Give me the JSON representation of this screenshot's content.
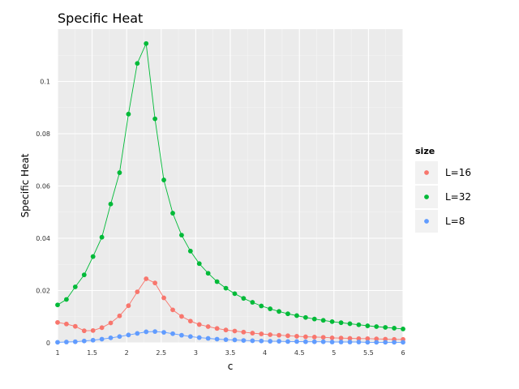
{
  "chart_data": {
    "type": "line",
    "title": "Specific Heat",
    "xlabel": "c",
    "ylabel": "Specific Heat",
    "xlim": [
      1,
      6
    ],
    "ylim": [
      0,
      0.12
    ],
    "x_ticks": [
      "1",
      "1.5",
      "2",
      "2.5",
      "3",
      "3.5",
      "4",
      "4.5",
      "5",
      "5.5",
      "6"
    ],
    "y_ticks": [
      "0",
      "0.02",
      "0.04",
      "0.06",
      "0.08",
      "0.1"
    ],
    "grid": true,
    "legend": {
      "title": "size",
      "position": "right"
    },
    "x": [
      1.0,
      1.128,
      1.256,
      1.385,
      1.513,
      1.641,
      1.769,
      1.897,
      2.026,
      2.154,
      2.282,
      2.41,
      2.538,
      2.667,
      2.795,
      2.923,
      3.051,
      3.179,
      3.308,
      3.436,
      3.564,
      3.692,
      3.821,
      3.949,
      4.077,
      4.205,
      4.333,
      4.462,
      4.59,
      4.718,
      4.846,
      4.974,
      5.103,
      5.231,
      5.359,
      5.487,
      5.615,
      5.744,
      5.872,
      6.0
    ],
    "series": [
      {
        "name": "L=16",
        "color": "#F8766D",
        "values": [
          0.0078,
          0.0072,
          0.0063,
          0.0046,
          0.0047,
          0.0058,
          0.0076,
          0.0103,
          0.0142,
          0.0195,
          0.0245,
          0.0229,
          0.0172,
          0.0126,
          0.0101,
          0.0083,
          0.007,
          0.0062,
          0.0055,
          0.0049,
          0.0045,
          0.0041,
          0.0037,
          0.0034,
          0.0031,
          0.0029,
          0.0027,
          0.0025,
          0.0023,
          0.0022,
          0.0021,
          0.0019,
          0.0018,
          0.0017,
          0.0016,
          0.0016,
          0.0015,
          0.0014,
          0.0013,
          0.0013
        ]
      },
      {
        "name": "L=32",
        "color": "#00BA38",
        "values": [
          0.0145,
          0.0166,
          0.0214,
          0.026,
          0.033,
          0.0404,
          0.0531,
          0.0651,
          0.0875,
          0.1069,
          0.1145,
          0.0857,
          0.0623,
          0.0496,
          0.0412,
          0.0351,
          0.0303,
          0.0266,
          0.0234,
          0.0209,
          0.0188,
          0.017,
          0.0155,
          0.0141,
          0.013,
          0.012,
          0.0111,
          0.0104,
          0.0097,
          0.0091,
          0.0086,
          0.0081,
          0.0077,
          0.0073,
          0.0069,
          0.0065,
          0.0062,
          0.0059,
          0.0056,
          0.0053
        ]
      },
      {
        "name": "L=8",
        "color": "#619CFF",
        "values": [
          0.0002,
          0.0003,
          0.0004,
          0.0007,
          0.001,
          0.0014,
          0.0019,
          0.0024,
          0.003,
          0.0036,
          0.0042,
          0.0043,
          0.004,
          0.0035,
          0.0029,
          0.0024,
          0.002,
          0.0017,
          0.0014,
          0.0012,
          0.0011,
          0.0009,
          0.0008,
          0.0007,
          0.0006,
          0.0006,
          0.0005,
          0.0005,
          0.0004,
          0.0004,
          0.0004,
          0.0003,
          0.0003,
          0.0003,
          0.0003,
          0.0002,
          0.0002,
          0.0002,
          0.0002,
          0.0002
        ]
      }
    ]
  }
}
